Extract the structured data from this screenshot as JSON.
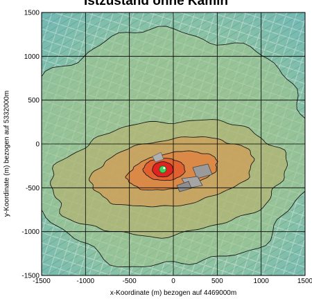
{
  "chart_data": {
    "type": "heatmap",
    "title": "Istzustand ohne Kamin",
    "xlabel": "x-Koordinate (m) bezogen auf 4469000m",
    "ylabel": "y-Koordinate (m) bezogen auf 5332000m",
    "xlim": [
      -1500,
      1500
    ],
    "ylim": [
      -1500,
      1500
    ],
    "xticks": [
      "-1500",
      "-1000",
      "-500",
      "0",
      "500",
      "1000",
      "1500"
    ],
    "yticks": [
      "1500",
      "1000",
      "500",
      "0",
      "-500",
      "-1000",
      "-1500"
    ],
    "grid": true,
    "background": "aerial city map",
    "source_point": {
      "x": -120,
      "y": -290
    },
    "colors": {
      "level_0": "#7fc7b3",
      "level_1": "#9ec38e",
      "level_2": "#b8b06c",
      "level_3": "#d49b55",
      "level_4": "#e0803f",
      "level_5": "#e05a2b",
      "level_6": "#e02020",
      "core": "#40d060"
    }
  }
}
